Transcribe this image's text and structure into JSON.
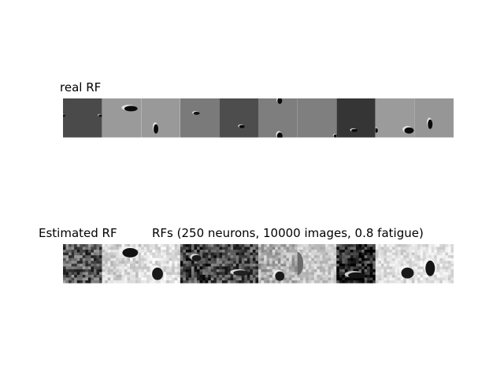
{
  "chart_data": [
    {
      "type": "heatmap",
      "title": "real RF",
      "panels": [
        {
          "bg": "#4a4a4a",
          "spots": [
            {
              "cx": 0.01,
              "cy": 0.44,
              "rx": 0.05,
              "ry": 0.03,
              "dark": "#111111",
              "light": "#f2f2f2"
            },
            {
              "cx": 0.96,
              "cy": 0.44,
              "rx": 0.05,
              "ry": 0.03,
              "dark": "#111111",
              "light": "#f2f2f2"
            }
          ]
        },
        {
          "bg": "#9a9a9a",
          "spots": [
            {
              "cx": 0.74,
              "cy": 0.26,
              "rx": 0.17,
              "ry": 0.07,
              "dark": "#0a0a0a",
              "light": "#eeeeee"
            }
          ]
        },
        {
          "bg": "#999999",
          "spots": [
            {
              "cx": 0.38,
              "cy": 0.78,
              "rx": 0.06,
              "ry": 0.12,
              "dark": "#0a0a0a",
              "light": "#f0f0f0"
            }
          ]
        },
        {
          "bg": "#7a7a7a",
          "spots": [
            {
              "cx": 0.42,
              "cy": 0.38,
              "rx": 0.08,
              "ry": 0.04,
              "dark": "#111111",
              "light": "#eeeeee"
            }
          ]
        },
        {
          "bg": "#4d4d4d",
          "spots": [
            {
              "cx": 0.58,
              "cy": 0.72,
              "rx": 0.07,
              "ry": 0.04,
              "dark": "#0a0a0a",
              "light": "#f0f0f0"
            }
          ]
        },
        {
          "bg": "#7e7e7e",
          "spots": [
            {
              "cx": 0.55,
              "cy": 0.06,
              "rx": 0.06,
              "ry": 0.08,
              "dark": "#0a0a0a",
              "light": "#efefef"
            },
            {
              "cx": 0.55,
              "cy": 0.96,
              "rx": 0.07,
              "ry": 0.09,
              "dark": "#0a0a0a",
              "light": "#efefef"
            }
          ]
        },
        {
          "bg": "#7f7f7f",
          "spots": [
            {
              "cx": 0.98,
              "cy": 0.96,
              "rx": 0.05,
              "ry": 0.04,
              "dark": "#0a0a0a",
              "light": "#eeeeee"
            }
          ]
        },
        {
          "bg": "#353535",
          "spots": [
            {
              "cx": 0.46,
              "cy": 0.82,
              "rx": 0.08,
              "ry": 0.04,
              "dark": "#0a0a0a",
              "light": "#eeeeee"
            }
          ]
        },
        {
          "bg": "#9b9b9b",
          "spots": [
            {
              "cx": 0.86,
              "cy": 0.82,
              "rx": 0.12,
              "ry": 0.08,
              "dark": "#0a0a0a",
              "light": "#eeeeee"
            },
            {
              "cx": 0.02,
              "cy": 0.82,
              "rx": 0.04,
              "ry": 0.06,
              "dark": "#0a0a0a",
              "light": "#eeeeee"
            }
          ]
        },
        {
          "bg": "#969696",
          "spots": [
            {
              "cx": 0.4,
              "cy": 0.66,
              "rx": 0.06,
              "ry": 0.12,
              "dark": "#0a0a0a",
              "light": "#f0f0f0"
            }
          ]
        }
      ]
    },
    {
      "type": "heatmap",
      "title": "Estimated RF",
      "subtitle": "RFs (250 neurons, 10000 images, 0.8 fatigue)",
      "panels": [
        {
          "bg": "#5c5c5c",
          "noise": 0.28,
          "seed": 3,
          "spots": []
        },
        {
          "bg": "#d4d4d4",
          "noise": 0.14,
          "seed": 5,
          "spots": [
            {
              "cx": 0.72,
              "cy": 0.22,
              "rx": 0.2,
              "ry": 0.12,
              "dark": "#111111",
              "light": "#f2f2f2"
            }
          ]
        },
        {
          "bg": "#e0e0e0",
          "noise": 0.12,
          "seed": 7,
          "spots": [
            {
              "cx": 0.42,
              "cy": 0.76,
              "rx": 0.14,
              "ry": 0.16,
              "dark": "#1a1a1a",
              "light": "#f6f6f6"
            }
          ]
        },
        {
          "bg": "#474747",
          "noise": 0.28,
          "seed": 11,
          "spots": [
            {
              "cx": 0.42,
              "cy": 0.36,
              "rx": 0.12,
              "ry": 0.08,
              "dark": "#1a1a1a",
              "light": "#e8e8e8"
            }
          ]
        },
        {
          "bg": "#4f4f4f",
          "noise": 0.25,
          "seed": 13,
          "spots": [
            {
              "cx": 0.56,
              "cy": 0.74,
              "rx": 0.2,
              "ry": 0.07,
              "dark": "#202020",
              "light": "#f2f2f2"
            }
          ]
        },
        {
          "bg": "#b0b0b0",
          "noise": 0.18,
          "seed": 17,
          "spots": [
            {
              "cx": 0.55,
              "cy": 0.82,
              "rx": 0.12,
              "ry": 0.12,
              "dark": "#1a1a1a",
              "light": "#f2f2f2"
            }
          ]
        },
        {
          "bg": "#c8c8c8",
          "noise": 0.12,
          "seed": 19,
          "spots": [
            {
              "cx": 0.0,
              "cy": 0.5,
              "rx": 0.15,
              "ry": 0.3,
              "dark": "#6a6a6a",
              "light": "#e5e5e5"
            }
          ]
        },
        {
          "bg": "#2a2a2a",
          "noise": 0.3,
          "seed": 23,
          "spots": [
            {
              "cx": 0.52,
              "cy": 0.8,
              "rx": 0.22,
              "ry": 0.08,
              "dark": "#141414",
              "light": "#e8e8e8"
            }
          ]
        },
        {
          "bg": "#dcdcdc",
          "noise": 0.1,
          "seed": 29,
          "spots": [
            {
              "cx": 0.82,
              "cy": 0.74,
              "rx": 0.16,
              "ry": 0.14,
              "dark": "#1a1a1a",
              "light": "#f8f8f8"
            }
          ]
        },
        {
          "bg": "#e2e2e2",
          "noise": 0.1,
          "seed": 31,
          "spots": [
            {
              "cx": 0.4,
              "cy": 0.62,
              "rx": 0.12,
              "ry": 0.2,
              "dark": "#151515",
              "light": "#f8f8f8"
            }
          ]
        }
      ]
    }
  ]
}
